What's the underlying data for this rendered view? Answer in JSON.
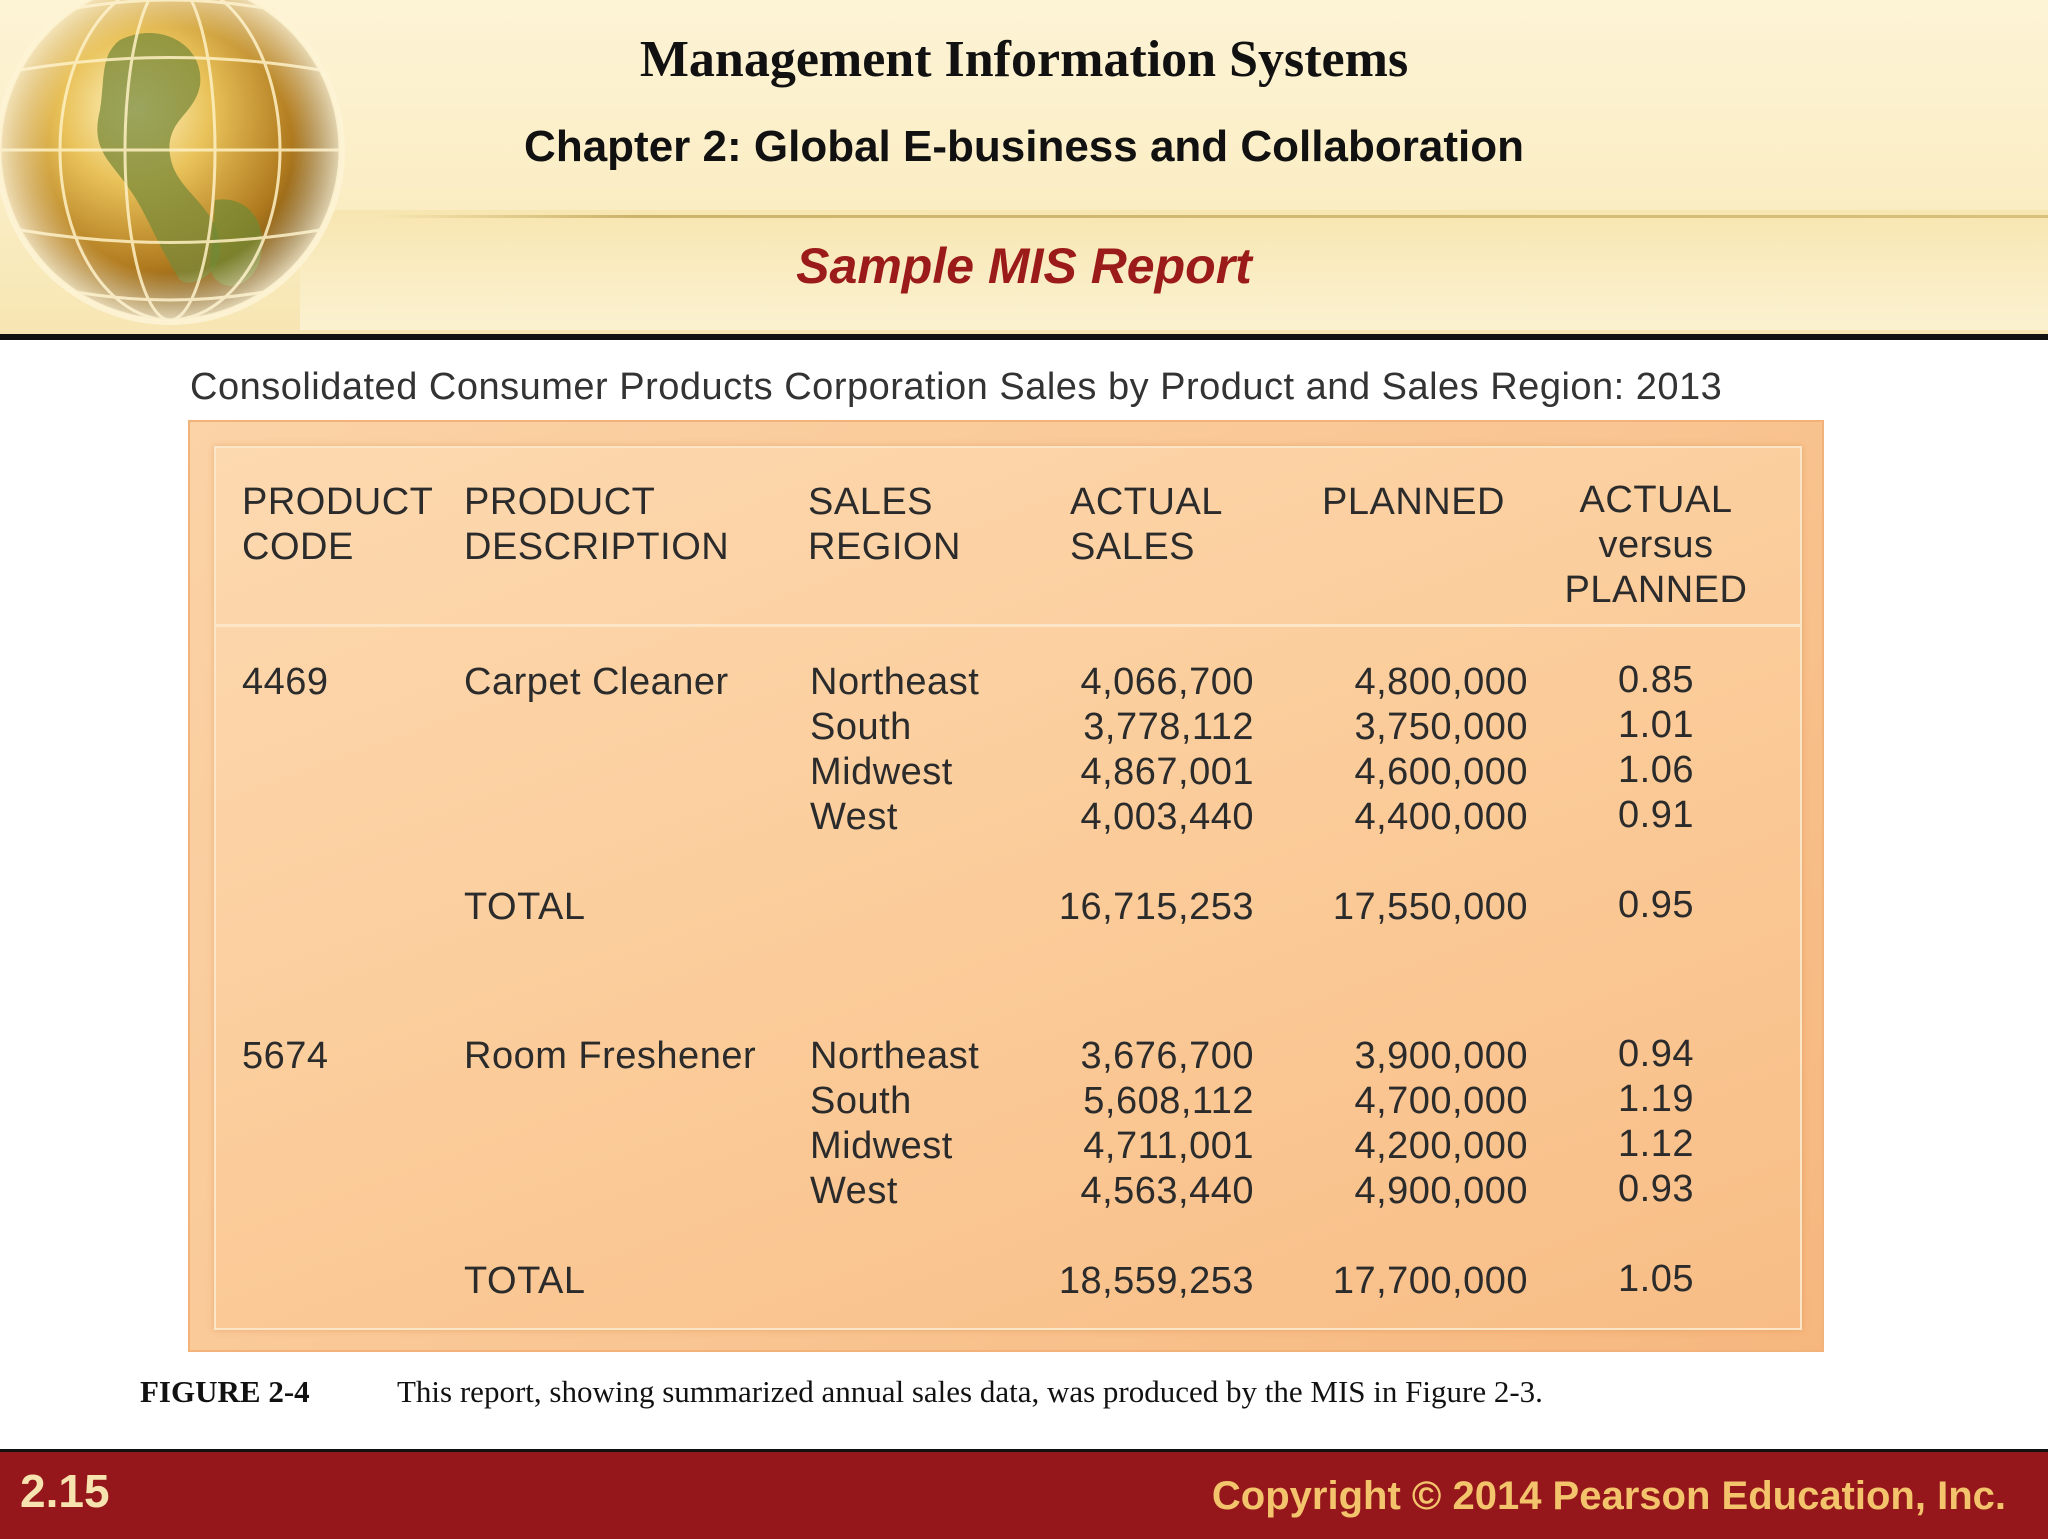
{
  "header": {
    "title": "Management Information Systems",
    "chapter": "Chapter 2: Global E-business and Collaboration",
    "slide_title": "Sample MIS Report"
  },
  "report": {
    "caption": "Consolidated Consumer Products Corporation Sales by Product and Sales Region: 2013",
    "columns": {
      "code_1": "PRODUCT",
      "code_2": "CODE",
      "desc_1": "PRODUCT",
      "desc_2": "DESCRIPTION",
      "region_1": "SALES",
      "region_2": "REGION",
      "actual_1": "ACTUAL",
      "actual_2": "SALES",
      "planned": "PLANNED",
      "ratio_1": "ACTUAL",
      "ratio_2": "versus",
      "ratio_3": "PLANNED"
    },
    "products": [
      {
        "code": "4469",
        "description": "Carpet Cleaner",
        "regions": [
          {
            "region": "Northeast",
            "actual": "4,066,700",
            "planned": "4,800,000",
            "ratio": "0.85"
          },
          {
            "region": "South",
            "actual": "3,778,112",
            "planned": "3,750,000",
            "ratio": "1.01"
          },
          {
            "region": "Midwest",
            "actual": "4,867,001",
            "planned": "4,600,000",
            "ratio": "1.06"
          },
          {
            "region": "West",
            "actual": "4,003,440",
            "planned": "4,400,000",
            "ratio": "0.91"
          }
        ],
        "total": {
          "label": "TOTAL",
          "actual": "16,715,253",
          "planned": "17,550,000",
          "ratio": "0.95"
        }
      },
      {
        "code": "5674",
        "description": "Room Freshener",
        "regions": [
          {
            "region": "Northeast",
            "actual": "3,676,700",
            "planned": "3,900,000",
            "ratio": "0.94"
          },
          {
            "region": "South",
            "actual": "5,608,112",
            "planned": "4,700,000",
            "ratio": "1.19"
          },
          {
            "region": "Midwest",
            "actual": "4,711,001",
            "planned": "4,200,000",
            "ratio": "1.12"
          },
          {
            "region": "West",
            "actual": "4,563,440",
            "planned": "4,900,000",
            "ratio": "0.93"
          }
        ],
        "total": {
          "label": "TOTAL",
          "actual": "18,559,253",
          "planned": "17,700,000",
          "ratio": "1.05"
        }
      }
    ]
  },
  "figure": {
    "label": "FIGURE 2-4",
    "text": "This report, showing summarized annual sales data, was produced by the MIS in Figure 2-3."
  },
  "footer": {
    "slide_number": "2.15",
    "copyright": "Copyright © 2014 Pearson Education, Inc."
  },
  "colors": {
    "title_red": "#9b1a1a",
    "footer_red": "#96171b",
    "footer_text": "#f3c46c",
    "report_orange": "#f9c592"
  },
  "icons": [
    "globe-icon"
  ]
}
